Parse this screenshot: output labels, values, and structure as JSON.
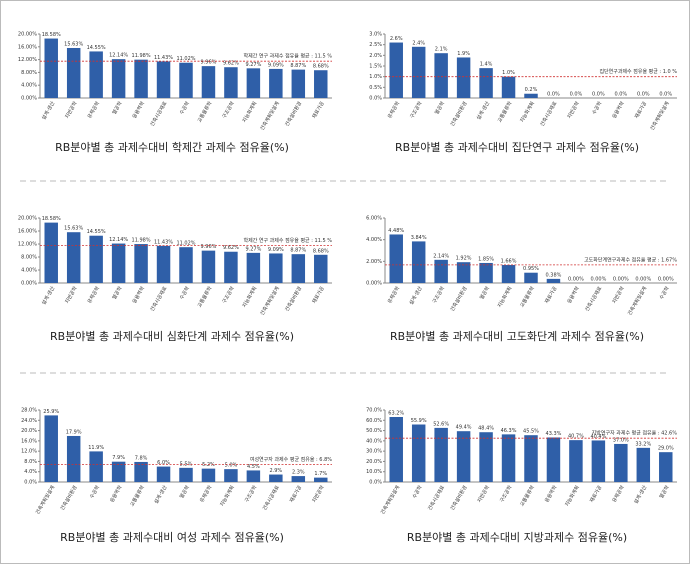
{
  "chart_data": [
    {
      "type": "bar",
      "title": "RB분야별 총 과제수대비 학제간 과제수 점유율(%)",
      "categories": [
        "설계·생산",
        "지반공학",
        "유체공학",
        "열공학",
        "응용역학",
        "건축시공재료",
        "수공학",
        "교통물류학",
        "구조공학",
        "지능화계획",
        "건축계획및설계",
        "건축설비환경",
        "재료가공"
      ],
      "values": [
        18.58,
        15.63,
        14.55,
        12.14,
        11.98,
        11.43,
        11.02,
        9.96,
        9.62,
        9.27,
        9.09,
        8.87,
        8.68
      ],
      "value_labels": [
        "18.58%",
        "15.63%",
        "14.55%",
        "12.14%",
        "11.98%",
        "11.43%",
        "11.02%",
        "9.96%",
        "9.62%",
        "9.27%",
        "9.09%",
        "8.87%",
        "8.68%"
      ],
      "color": "#2f5fa8",
      "ylim": [
        0,
        20
      ],
      "yticks": [
        {
          "value": 0,
          "label": "0.00%"
        },
        {
          "value": 4,
          "label": "4.00%"
        },
        {
          "value": 8,
          "label": "8.00%"
        },
        {
          "value": 12,
          "label": "12.00%"
        },
        {
          "value": 16,
          "label": "16.00%"
        },
        {
          "value": 20,
          "label": "20.00%"
        }
      ],
      "average": 11.5,
      "average_label": "학제간 연구 과제수 점유율 평균 : 11.5 %",
      "average_color": "#d03030"
    },
    {
      "type": "bar",
      "title": "RB분야별 총 과제수대비 집단연구 과제수 점유율(%)",
      "categories": [
        "유체공학",
        "구조공학",
        "열공학",
        "건축설비환경",
        "설계·생산",
        "교통물류학",
        "지능화계획",
        "건축시공재료",
        "지반공학",
        "수공학",
        "응용역학",
        "재료가공",
        "건축계획및설계"
      ],
      "values": [
        2.6,
        2.4,
        2.1,
        1.9,
        1.4,
        1.0,
        0.2,
        0,
        0,
        0,
        0,
        0,
        0
      ],
      "value_labels": [
        "2.6%",
        "2.4%",
        "2.1%",
        "1.9%",
        "1.4%",
        "1.0%",
        "0.2%",
        "0.0%",
        "0.0%",
        "0.0%",
        "0.0%",
        "0.0%",
        "0.0%"
      ],
      "color": "#2f5fa8",
      "ylim": [
        0,
        3
      ],
      "yticks": [
        {
          "value": 0,
          "label": "0.0%"
        },
        {
          "value": 0.5,
          "label": "0.5%"
        },
        {
          "value": 1,
          "label": "1.0%"
        },
        {
          "value": 1.5,
          "label": "1.5%"
        },
        {
          "value": 2,
          "label": "2.0%"
        },
        {
          "value": 2.5,
          "label": "2.5%"
        },
        {
          "value": 3,
          "label": "3.0%"
        }
      ],
      "average": 1.0,
      "average_label": "집단연구과제수 점유율 평균 : 1.0 %",
      "average_color": "#d03030"
    },
    {
      "type": "bar",
      "title": "RB분야별 총 과제수대비 심화단계 과제수 점유율(%)",
      "categories": [
        "설계·생산",
        "지반공학",
        "유체공학",
        "열공학",
        "응용역학",
        "건축시공재료",
        "수공학",
        "교통물류학",
        "구조공학",
        "지능화계획",
        "건축계획및설계",
        "건축설비환경",
        "재료가공"
      ],
      "values": [
        18.58,
        15.63,
        14.55,
        12.14,
        11.98,
        11.43,
        11.02,
        9.96,
        9.62,
        9.27,
        9.09,
        8.87,
        8.68
      ],
      "value_labels": [
        "18.58%",
        "15.63%",
        "14.55%",
        "12.14%",
        "11.98%",
        "11.43%",
        "11.02%",
        "9.96%",
        "9.62%",
        "9.27%",
        "9.09%",
        "8.87%",
        "8.68%"
      ],
      "color": "#2f5fa8",
      "ylim": [
        0,
        20
      ],
      "yticks": [
        {
          "value": 0,
          "label": "0.00%"
        },
        {
          "value": 4,
          "label": "4.00%"
        },
        {
          "value": 8,
          "label": "8.00%"
        },
        {
          "value": 12,
          "label": "12.00%"
        },
        {
          "value": 16,
          "label": "16.00%"
        },
        {
          "value": 20,
          "label": "20.00%"
        }
      ],
      "average": 11.5,
      "average_label": "학제간 연구 과제수 점유율 평균 : 11.5 %",
      "average_color": "#d03030"
    },
    {
      "type": "bar",
      "title": "RB분야별 총 과제수대비 고도화단계 과제수 점유율(%)",
      "categories": [
        "유체공학",
        "설계·생산",
        "구조공학",
        "건축설비환경",
        "열공학",
        "지능화계획",
        "교통물류학",
        "재료가공",
        "응용역학",
        "건축시공재료",
        "지반공학",
        "건축계획및설계",
        "수공학"
      ],
      "values": [
        4.48,
        3.84,
        2.14,
        1.92,
        1.85,
        1.66,
        0.95,
        0.38,
        0,
        0,
        0,
        0,
        0
      ],
      "value_labels": [
        "4.48%",
        "3.84%",
        "2.14%",
        "1.92%",
        "1.85%",
        "1.66%",
        "0.95%",
        "0.38%",
        "0.00%",
        "0.00%",
        "0.00%",
        "0.00%",
        "0.00%"
      ],
      "color": "#2f5fa8",
      "ylim": [
        0,
        6
      ],
      "yticks": [
        {
          "value": 0,
          "label": "0.00%"
        },
        {
          "value": 2,
          "label": "2.00%"
        },
        {
          "value": 4,
          "label": "4.00%"
        },
        {
          "value": 6,
          "label": "6.00%"
        }
      ],
      "average": 1.67,
      "average_label": "고도화단계연구과제수 점유율 평균 : 1.67%",
      "average_color": "#d03030"
    },
    {
      "type": "bar",
      "title": "RB분야별 총 과제수대비 여성 과제수 점유율(%)",
      "categories": [
        "건축계획및설계",
        "건축설비환경",
        "수공학",
        "응용역학",
        "교통물류학",
        "설계·생산",
        "열공학",
        "유체공학",
        "지능화계획",
        "구조공학",
        "건축시공재료",
        "재료가공",
        "지반공학"
      ],
      "values": [
        25.9,
        17.9,
        11.9,
        7.9,
        7.8,
        6.0,
        5.5,
        5.2,
        5.0,
        4.5,
        2.9,
        2.3,
        1.7
      ],
      "value_labels": [
        "25.9%",
        "17.9%",
        "11.9%",
        "7.9%",
        "7.8%",
        "6.0%",
        "5.5%",
        "5.2%",
        "5.0%",
        "4.5%",
        "2.9%",
        "2.3%",
        "1.7%"
      ],
      "color": "#2f5fa8",
      "ylim": [
        0,
        28
      ],
      "yticks": [
        {
          "value": 0,
          "label": "0.0%"
        },
        {
          "value": 4,
          "label": "4.0%"
        },
        {
          "value": 8,
          "label": "8.0%"
        },
        {
          "value": 12,
          "label": "12.0%"
        },
        {
          "value": 16,
          "label": "16.0%"
        },
        {
          "value": 20,
          "label": "20.0%"
        },
        {
          "value": 24,
          "label": "24.0%"
        },
        {
          "value": 28,
          "label": "28.0%"
        }
      ],
      "average": 6.8,
      "average_label": "여성연구자 과제수 평균 점유율 : 6.8%",
      "average_color": "#d03030"
    },
    {
      "type": "bar",
      "title": "RB분야별 총 과제수대비 지방과제수 점유율(%)",
      "categories": [
        "건축계획및설계",
        "수공학",
        "건축시공재료",
        "건축설비환경",
        "지반공학",
        "구조공학",
        "교통물류학",
        "응용역학",
        "지능화계획",
        "재료가공",
        "유체공학",
        "설계·생산",
        "열공학"
      ],
      "values": [
        63.2,
        55.9,
        52.6,
        49.4,
        48.4,
        46.3,
        45.5,
        43.3,
        40.7,
        40.4,
        37.0,
        33.2,
        29.0
      ],
      "value_labels": [
        "63.2%",
        "55.9%",
        "52.6%",
        "49.4%",
        "48.4%",
        "46.3%",
        "45.5%",
        "43.3%",
        "40.7%",
        "40.4%",
        "37.0%",
        "33.2%",
        "29.0%"
      ],
      "color": "#2f5fa8",
      "ylim": [
        0,
        70
      ],
      "yticks": [
        {
          "value": 0,
          "label": "0.0%"
        },
        {
          "value": 10,
          "label": "10.0%"
        },
        {
          "value": 20,
          "label": "20.0%"
        },
        {
          "value": 30,
          "label": "30.0%"
        },
        {
          "value": 40,
          "label": "40.0%"
        },
        {
          "value": 50,
          "label": "50.0%"
        },
        {
          "value": 60,
          "label": "60.0%"
        },
        {
          "value": 70,
          "label": "70.0%"
        }
      ],
      "average": 42.6,
      "average_label": "지방연구자 과제수 평균 점유율 : 42.6%",
      "average_color": "#d03030"
    }
  ]
}
